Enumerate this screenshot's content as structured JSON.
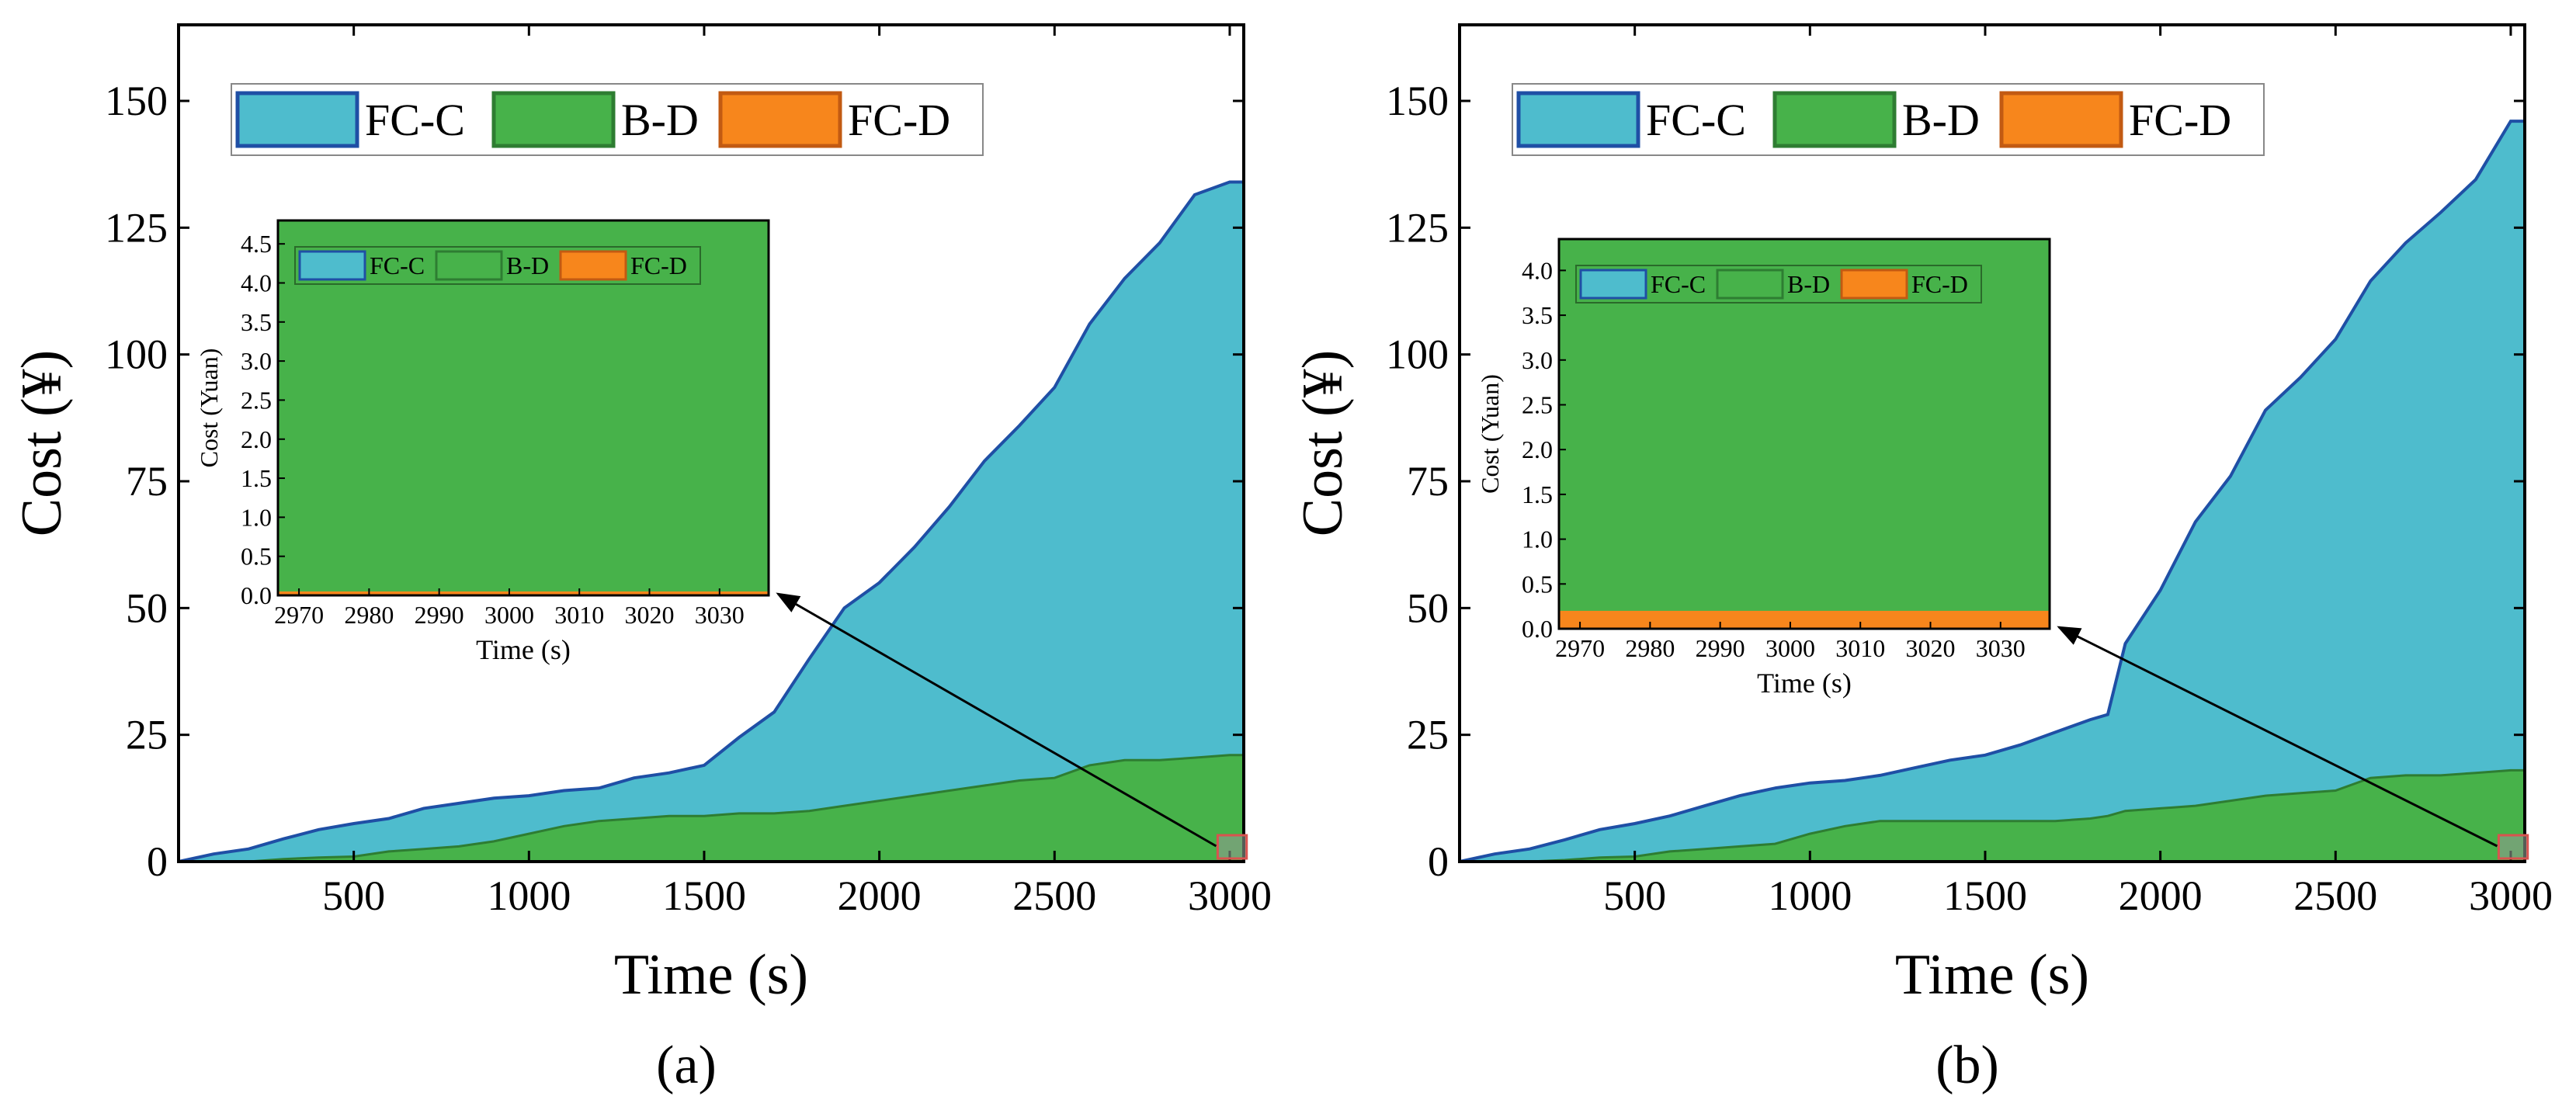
{
  "chart_data": [
    {
      "type": "area",
      "stacked": true,
      "panel_label": "(a)",
      "xlabel": "Time (s)",
      "ylabel": "Cost (¥)",
      "xlim": [
        0,
        3040
      ],
      "ylim": [
        0,
        165
      ],
      "xticks": [
        500,
        1000,
        1500,
        2000,
        2500,
        3000
      ],
      "yticks": [
        0,
        25,
        50,
        75,
        100,
        125,
        150
      ],
      "legend": {
        "placement": "top-left",
        "entries": [
          "FC-C",
          "B-D",
          "FC-D"
        ]
      },
      "colors": {
        "FC-C": "#4ebccd",
        "FC-C_edge": "#1f4fa5",
        "B-D": "#47b24a",
        "B-D_edge": "#2e7d32",
        "FC-D": "#f7861c",
        "FC-D_edge": "#c25a12"
      },
      "x": [
        0,
        100,
        200,
        300,
        400,
        500,
        600,
        700,
        800,
        900,
        1000,
        1100,
        1200,
        1300,
        1400,
        1500,
        1600,
        1700,
        1800,
        1900,
        2000,
        2100,
        2200,
        2300,
        2400,
        2500,
        2600,
        2700,
        2800,
        2900,
        3000,
        3040
      ],
      "series": [
        {
          "name": "FC-D",
          "values": [
            0,
            0,
            0,
            0,
            0,
            0,
            0,
            0,
            0,
            0,
            0,
            0,
            0,
            0,
            0,
            0,
            0,
            0,
            0,
            0,
            0,
            0,
            0,
            0,
            0,
            0,
            0,
            0,
            0,
            0,
            0,
            0
          ]
        },
        {
          "name": "B-D",
          "values": [
            0,
            0,
            0,
            0.5,
            0.8,
            1,
            2,
            2.5,
            3,
            4,
            5.5,
            7,
            8,
            8.5,
            9,
            9,
            9.5,
            9.5,
            10,
            11,
            12,
            13,
            14,
            15,
            16,
            16.5,
            19,
            20,
            20,
            20.5,
            21,
            21
          ]
        },
        {
          "name": "FC-C",
          "values": [
            0,
            1.5,
            2.5,
            4,
            5.5,
            6.5,
            6.5,
            8,
            8.5,
            8.5,
            7.5,
            7,
            6.5,
            8,
            8.5,
            10,
            15,
            20,
            30,
            39,
            43,
            49,
            56,
            64,
            70,
            77,
            87,
            95,
            102,
            111,
            113,
            113
          ]
        }
      ],
      "inset": {
        "xlabel": "Time (s)",
        "ylabel": "Cost (Yuan)",
        "xlim": [
          2967,
          3037
        ],
        "ylim": [
          0,
          4.8
        ],
        "xticks": [
          2970,
          2980,
          2990,
          3000,
          3010,
          3020,
          3030
        ],
        "yticks": [
          0.0,
          0.5,
          1.0,
          1.5,
          2.0,
          2.5,
          3.0,
          3.5,
          4.0,
          4.5
        ],
        "ytick_labels": [
          "0.0",
          "0.5",
          "1.0",
          "1.5",
          "2.0",
          "2.5",
          "3.0",
          "3.5",
          "4.0",
          "4.5"
        ],
        "legend_entries": [
          "FC-C",
          "B-D",
          "FC-D"
        ],
        "fc_d_level": 0.05
      },
      "zoom_region": {
        "x": [
          2970,
          3035
        ]
      }
    },
    {
      "type": "area",
      "stacked": true,
      "panel_label": "(b)",
      "xlabel": "Time (s)",
      "ylabel": "Cost (¥)",
      "xlim": [
        0,
        3040
      ],
      "ylim": [
        0,
        165
      ],
      "xticks": [
        500,
        1000,
        1500,
        2000,
        2500,
        3000
      ],
      "yticks": [
        0,
        25,
        50,
        75,
        100,
        125,
        150
      ],
      "legend": {
        "placement": "top-left",
        "entries": [
          "FC-C",
          "B-D",
          "FC-D"
        ]
      },
      "colors": {
        "FC-C": "#4ebccd",
        "FC-C_edge": "#1f4fa5",
        "B-D": "#47b24a",
        "B-D_edge": "#2e7d32",
        "FC-D": "#f7861c",
        "FC-D_edge": "#c25a12"
      },
      "x": [
        0,
        100,
        200,
        300,
        400,
        500,
        600,
        700,
        800,
        900,
        1000,
        1100,
        1200,
        1300,
        1400,
        1500,
        1600,
        1700,
        1800,
        1850,
        1900,
        2000,
        2100,
        2200,
        2300,
        2400,
        2500,
        2600,
        2700,
        2800,
        2900,
        3000,
        3040
      ],
      "series": [
        {
          "name": "FC-D",
          "values": [
            0,
            0,
            0,
            0,
            0,
            0,
            0,
            0,
            0,
            0,
            0,
            0,
            0,
            0,
            0,
            0,
            0,
            0,
            0,
            0,
            0,
            0,
            0,
            0,
            0,
            0,
            0,
            0,
            0,
            0,
            0,
            0,
            0
          ]
        },
        {
          "name": "B-D",
          "values": [
            0,
            0,
            0,
            0.3,
            0.8,
            1,
            2,
            2.5,
            3,
            3.5,
            5.5,
            7,
            8,
            8,
            8,
            8,
            8,
            8,
            8.5,
            9,
            10,
            10.5,
            11,
            12,
            13,
            13.5,
            14,
            16.5,
            17,
            17,
            17.5,
            18,
            18
          ]
        },
        {
          "name": "FC-C",
          "values": [
            0,
            1.5,
            2.5,
            4,
            5.5,
            6.5,
            7,
            8.5,
            10,
            11,
            10,
            9,
            9,
            10.5,
            12,
            13,
            15,
            17.5,
            19.5,
            20,
            33,
            43,
            56,
            64,
            76,
            82,
            89,
            98,
            105,
            111,
            117,
            128,
            128
          ]
        }
      ],
      "inset": {
        "xlabel": "Time (s)",
        "ylabel": "Cost (Yuan)",
        "xlim": [
          2967,
          3037
        ],
        "ylim": [
          0,
          4.35
        ],
        "xticks": [
          2970,
          2980,
          2990,
          3000,
          3010,
          3020,
          3030
        ],
        "yticks": [
          0.0,
          0.5,
          1.0,
          1.5,
          2.0,
          2.5,
          3.0,
          3.5,
          4.0
        ],
        "ytick_labels": [
          "0.0",
          "0.5",
          "1.0",
          "1.5",
          "2.0",
          "2.5",
          "3.0",
          "3.5",
          "4.0"
        ],
        "legend_entries": [
          "FC-C",
          "B-D",
          "FC-D"
        ],
        "fc_d_level": 0.2
      },
      "zoom_region": {
        "x": [
          2970,
          3035
        ]
      }
    }
  ]
}
